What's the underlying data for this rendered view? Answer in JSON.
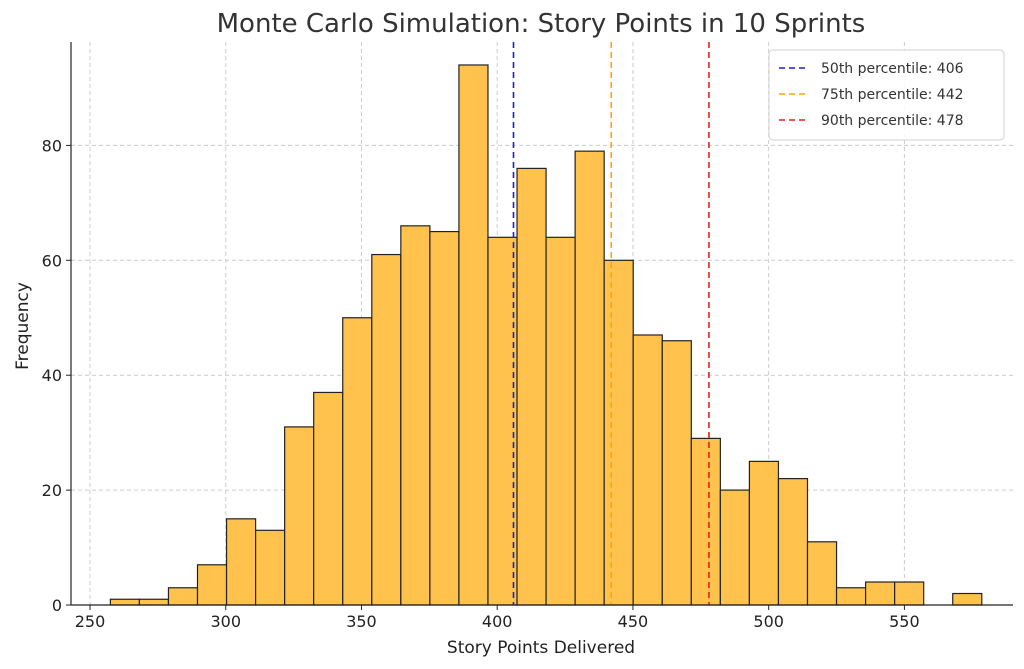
{
  "chart_data": {
    "type": "bar",
    "title": "Monte Carlo Simulation: Story Points in 10 Sprints",
    "xlabel": "Story Points Delivered",
    "ylabel": "Frequency",
    "xlim": [
      243,
      590
    ],
    "ylim": [
      0,
      98
    ],
    "xticks": [
      250,
      300,
      350,
      400,
      450,
      500,
      550
    ],
    "yticks": [
      0,
      20,
      40,
      60,
      80
    ],
    "grid": true,
    "legend_position": "top-right",
    "bin_width": 10.7,
    "bins": [
      {
        "start": 257.5,
        "count": 1
      },
      {
        "start": 268.2,
        "count": 1
      },
      {
        "start": 278.9,
        "count": 3
      },
      {
        "start": 289.6,
        "count": 7
      },
      {
        "start": 300.3,
        "count": 15
      },
      {
        "start": 311.0,
        "count": 13
      },
      {
        "start": 321.7,
        "count": 31
      },
      {
        "start": 332.4,
        "count": 37
      },
      {
        "start": 343.1,
        "count": 50
      },
      {
        "start": 353.8,
        "count": 61
      },
      {
        "start": 364.5,
        "count": 66
      },
      {
        "start": 375.2,
        "count": 65
      },
      {
        "start": 385.9,
        "count": 94
      },
      {
        "start": 396.6,
        "count": 64
      },
      {
        "start": 407.3,
        "count": 76
      },
      {
        "start": 418.0,
        "count": 64
      },
      {
        "start": 428.7,
        "count": 79
      },
      {
        "start": 439.4,
        "count": 60
      },
      {
        "start": 450.1,
        "count": 47
      },
      {
        "start": 460.8,
        "count": 46
      },
      {
        "start": 471.5,
        "count": 29
      },
      {
        "start": 482.2,
        "count": 20
      },
      {
        "start": 492.9,
        "count": 25
      },
      {
        "start": 503.6,
        "count": 22
      },
      {
        "start": 514.3,
        "count": 11
      },
      {
        "start": 525.0,
        "count": 3
      },
      {
        "start": 535.7,
        "count": 4
      },
      {
        "start": 546.4,
        "count": 4
      },
      {
        "start": 557.1,
        "count": 0
      },
      {
        "start": 567.8,
        "count": 2
      }
    ],
    "bar_color": "#FFC34D",
    "bar_edge_color": "#222222",
    "percentile_lines": [
      {
        "label": "50th percentile: 406",
        "value": 406,
        "color": "#1f1fd6"
      },
      {
        "label": "75th percentile: 442",
        "value": 442,
        "color": "#FFA500"
      },
      {
        "label": "90th percentile: 478",
        "value": 478,
        "color": "#E8201F"
      }
    ]
  }
}
